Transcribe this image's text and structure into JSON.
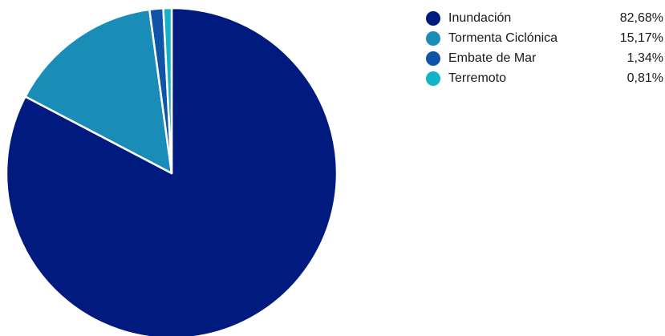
{
  "chart_data": {
    "type": "pie",
    "categories": [
      "Inundación",
      "Tormenta Ciclónica",
      "Embate de Mar",
      "Terremoto"
    ],
    "values": [
      82.68,
      15.17,
      1.34,
      0.81
    ],
    "value_labels": [
      "82,68%",
      "15,17%",
      "1,34%",
      "0,81%"
    ],
    "colors": [
      "#001a80",
      "#1a8cb8",
      "#0f54a8",
      "#12b3c7"
    ],
    "legend_position": "top-right",
    "start_angle": "12 o'clock, clockwise",
    "title": "",
    "slice_border_color": "#ffffff"
  }
}
